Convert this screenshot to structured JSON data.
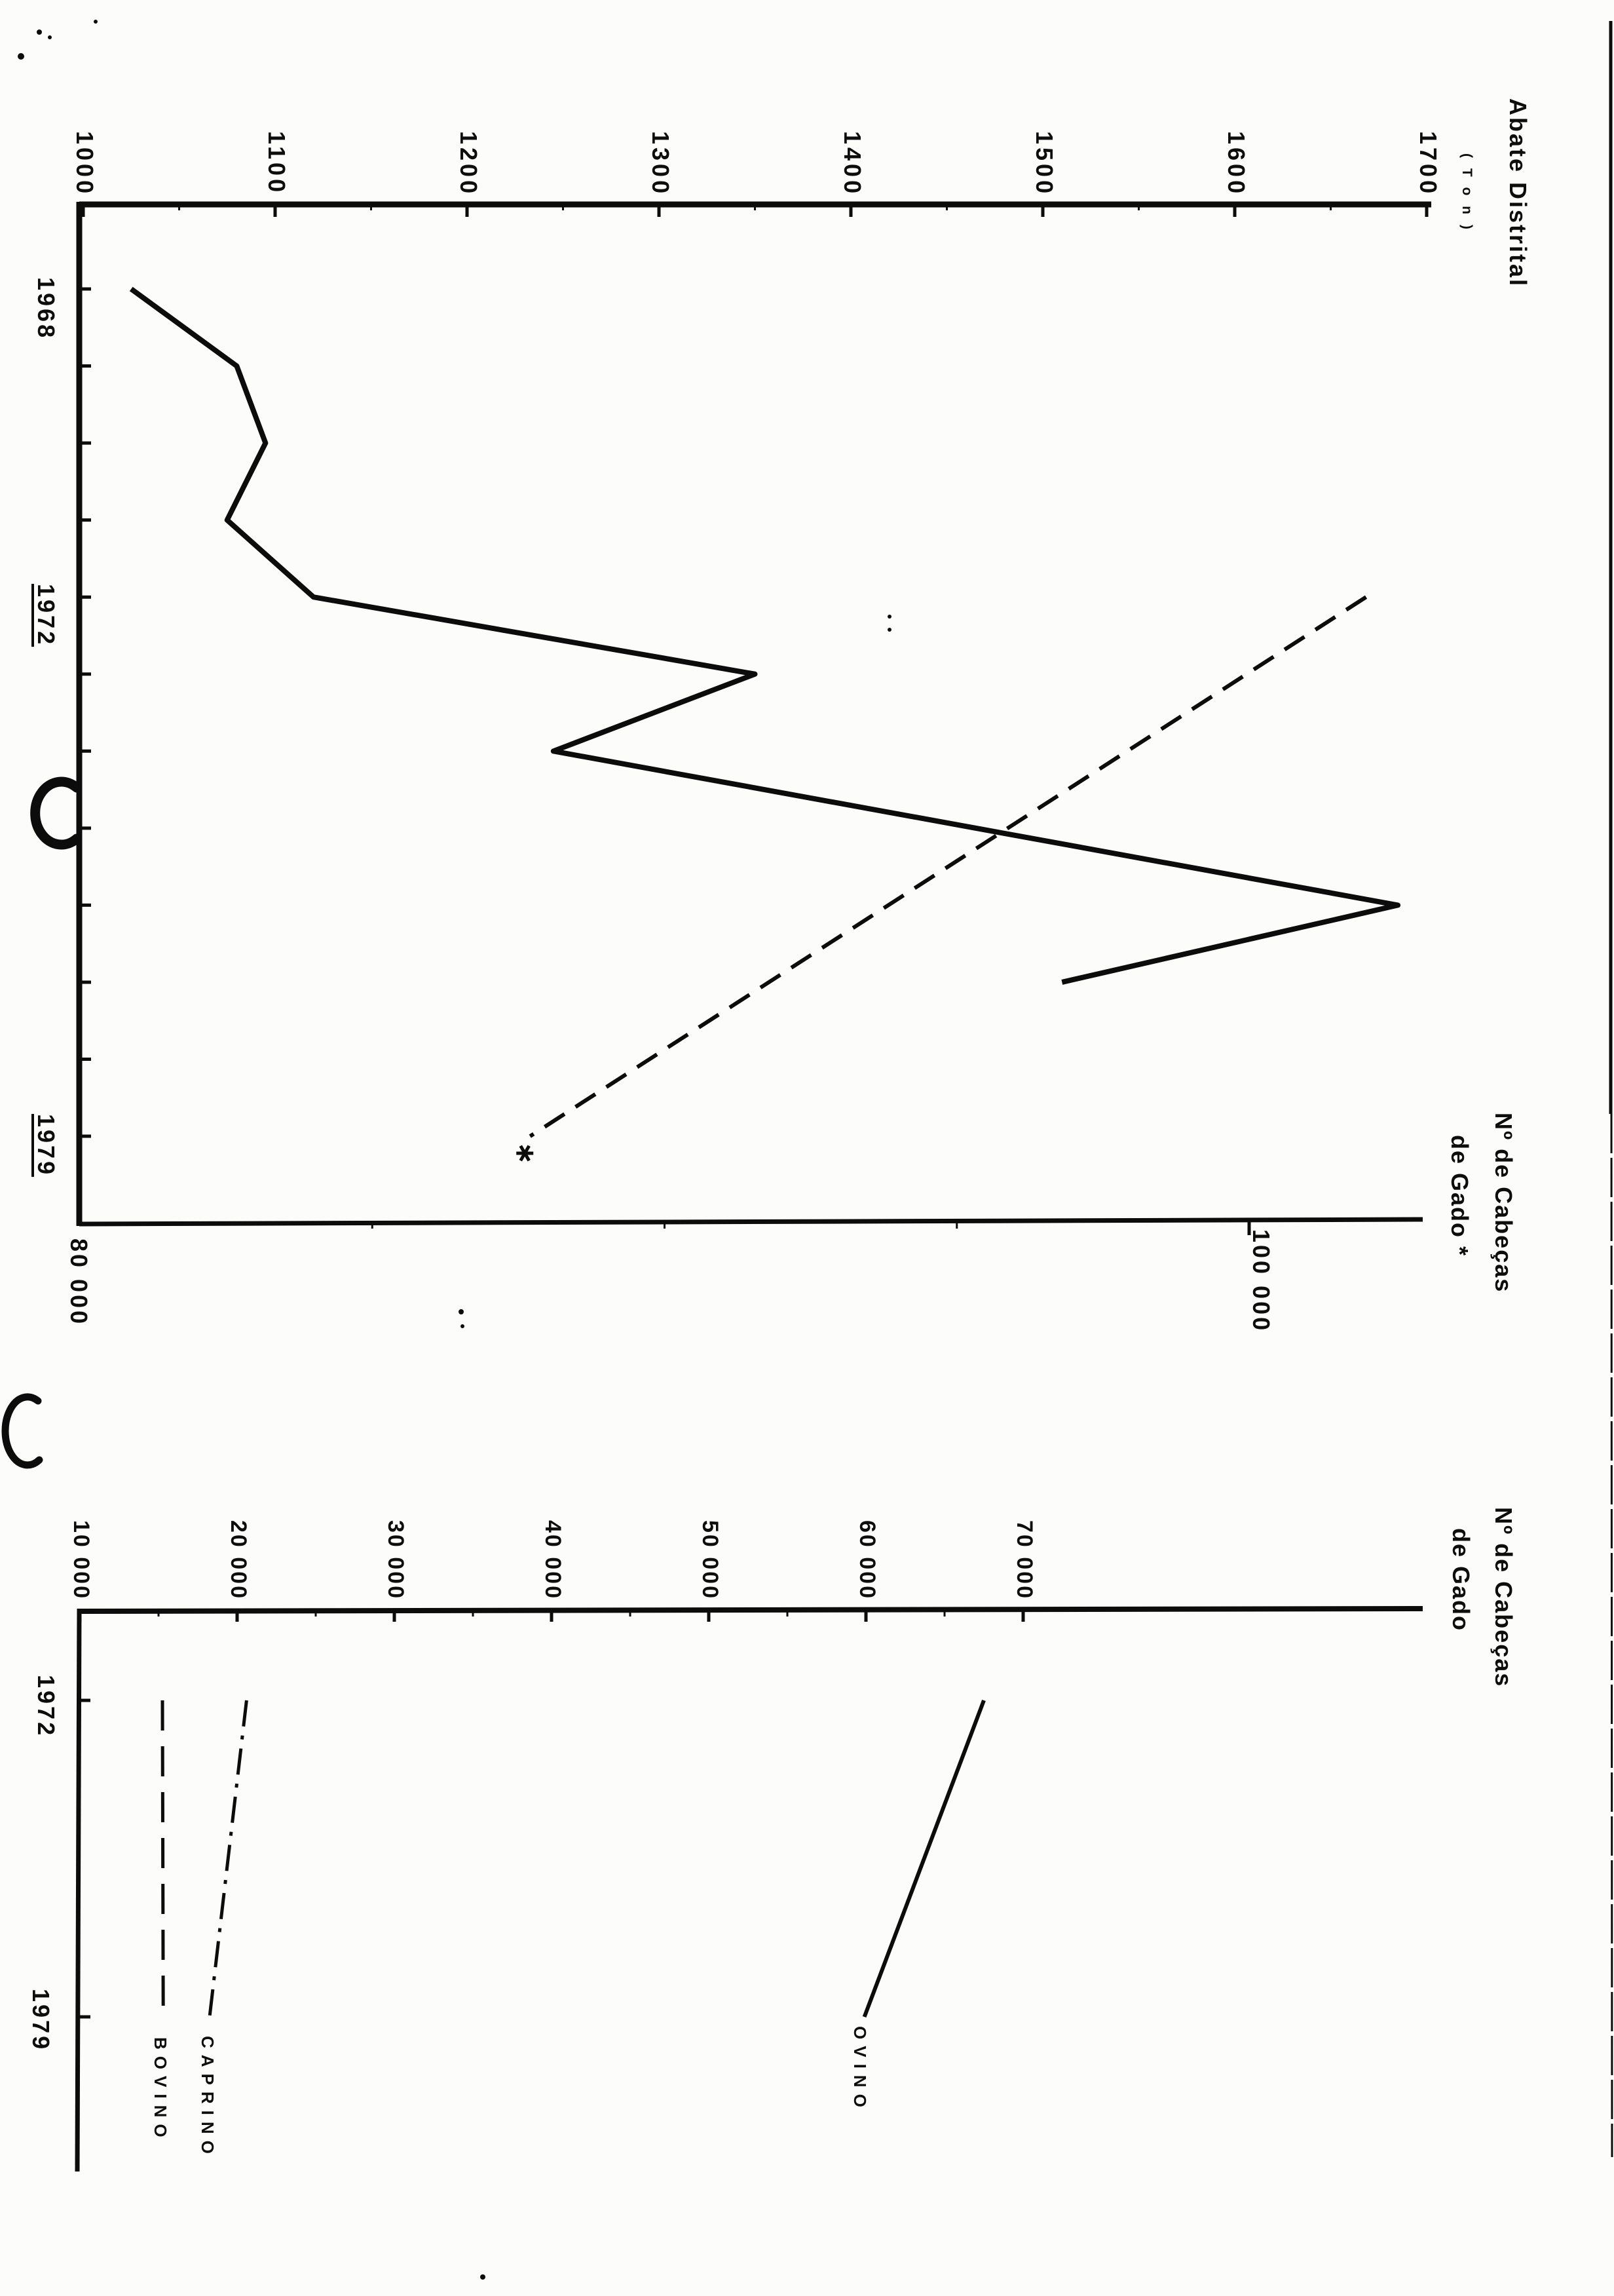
{
  "page_kind": "scanned statistical chart page, all content rotated 90 degrees clockwise",
  "chart_data": [
    {
      "type": "line",
      "title": "Abate Distrital",
      "unit": "( T o n )",
      "orientation": "rotated 90deg clockwise on page: value axis runs left-to-right along page top, year axis runs top-to-bottom along page left",
      "value_axis": {
        "min": 1000,
        "max": 1700,
        "tick_step": 100,
        "tick_labels": [
          "1000",
          "1100",
          "1200",
          "1300",
          "1400",
          "1500",
          "1600",
          "1700"
        ]
      },
      "year_axis": {
        "min": 1968,
        "max": 1980,
        "labeled_years": [
          {
            "year": 1968,
            "text": "1968",
            "underlined": false
          },
          {
            "year": 1972,
            "text": "1972",
            "underlined": true
          },
          {
            "year": 1979,
            "text": "1979",
            "underlined": true
          }
        ]
      },
      "secondary_axis": {
        "title_line1": "Nº de Cabeças",
        "title_line2": "de Gado *",
        "min": 80000,
        "max": 103000,
        "tick_labels": [
          {
            "value": 80000,
            "text": "80 000"
          },
          {
            "value": 100000,
            "text": "100 000"
          }
        ]
      },
      "series": [
        {
          "name": "Abate Distrital (Ton)",
          "style": "solid",
          "axis": "value",
          "years": [
            1968,
            1969,
            1970,
            1971,
            1972,
            1973,
            1974,
            1976,
            1977
          ],
          "values": [
            1025,
            1080,
            1095,
            1075,
            1120,
            1350,
            1245,
            1685,
            1510
          ]
        },
        {
          "name": "Nº de Cabeças de Gado *",
          "style": "dashed",
          "axis": "secondary",
          "years": [
            1972,
            1979
          ],
          "values": [
            102000,
            87700
          ],
          "end_marker": "asterisk at 1979 end"
        }
      ]
    },
    {
      "type": "line",
      "title_line1": "Nº de Cabeças",
      "title_line2": "de Gado",
      "orientation": "rotated 90deg clockwise on page: value axis along page top, year axis down page left",
      "value_axis": {
        "min": 10000,
        "max": 95000,
        "tick_step": 10000,
        "tick_labels": [
          "10 000",
          "20 000",
          "30 000",
          "40 000",
          "50 000",
          "60 000",
          "70 000"
        ]
      },
      "year_axis": {
        "min": 1972,
        "max": 1979,
        "labeled_years": [
          {
            "year": 1972,
            "text": "1972",
            "underlined": false
          },
          {
            "year": 1979,
            "text": "1979",
            "underlined": false
          }
        ]
      },
      "series": [
        {
          "name": "OVINO",
          "style": "solid",
          "years": [
            1972,
            1979
          ],
          "values": [
            67500,
            59900
          ]
        },
        {
          "name": "CAPRINO",
          "style": "dash-dot",
          "years": [
            1972,
            1979
          ],
          "values": [
            20600,
            18250
          ]
        },
        {
          "name": "BOVINO",
          "style": "dashed",
          "years": [
            1972,
            1979
          ],
          "values": [
            15250,
            15300
          ]
        }
      ],
      "legend": [
        "OVINO",
        "CAPRINO",
        "BOVINO"
      ]
    }
  ]
}
